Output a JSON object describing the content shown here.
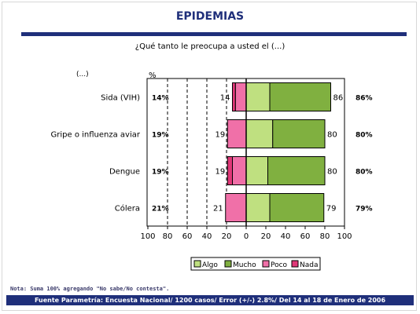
{
  "header": {
    "title": "EPIDEMIAS",
    "question": "¿Qué tanto le preocupa a usted el (...)"
  },
  "chart_data": {
    "type": "bar",
    "stacked": true,
    "orientation": "horizontal",
    "diverging": true,
    "row_header": "(...)",
    "pct_header": "%",
    "categories": [
      "Sida (VIH)",
      "Gripe o influenza aviar",
      "Dengue",
      "Cólera"
    ],
    "series": [
      {
        "name": "Algo",
        "side": "right",
        "color": "#bfe080",
        "values": [
          24,
          27,
          22,
          24
        ]
      },
      {
        "name": "Mucho",
        "side": "right",
        "color": "#80b040",
        "values": [
          62,
          53,
          58,
          55
        ]
      },
      {
        "name": "Poco",
        "side": "left",
        "color": "#f070a8",
        "values": [
          11,
          19,
          14,
          21
        ]
      },
      {
        "name": "Nada",
        "side": "left",
        "color": "#e03878",
        "values": [
          3,
          0,
          5,
          0
        ]
      }
    ],
    "left_totals": [
      14,
      19,
      19,
      21
    ],
    "right_totals": [
      86,
      80,
      80,
      79
    ],
    "left_pct_labels": [
      "14%",
      "19%",
      "19%",
      "21%"
    ],
    "right_pct_labels": [
      "86%",
      "80%",
      "80%",
      "79%"
    ],
    "xlim": [
      -100,
      100
    ],
    "x_tick_labels": [
      "100",
      "80",
      "60",
      "40",
      "20",
      "0",
      "20",
      "40",
      "60",
      "80",
      "100"
    ],
    "legend_position": "bottom",
    "grid": "dashed vertical at negative ticks"
  },
  "note": "Nota: Suma 100% agregando \"No sabe/No contesta\".",
  "footer": "Fuente Parametría: Encuesta Nacional/ 1200 casos/ Error (+/-) 2.8%/ Del 14 al 18 de Enero de 2006"
}
